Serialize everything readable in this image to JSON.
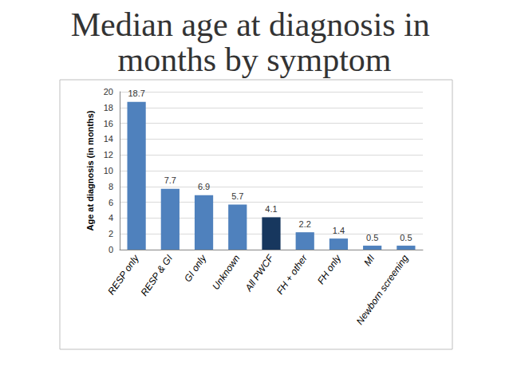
{
  "chart_data": {
    "type": "bar",
    "title": "Median age at diagnosis in months by symptom",
    "y_label": "Age at diagnosis (in months)",
    "categories": [
      "RESP only",
      "RESP & GI",
      "GI only",
      "Unknown",
      "All PWCF",
      "FH + other",
      "FH only",
      "MI",
      "Newborn screening"
    ],
    "values": [
      18.7,
      7.7,
      6.9,
      5.7,
      4.1,
      2.2,
      1.4,
      0.5,
      0.5
    ],
    "colors": [
      "#4f81bd",
      "#4f81bd",
      "#4f81bd",
      "#4f81bd",
      "#17375e",
      "#4f81bd",
      "#4f81bd",
      "#4f81bd",
      "#4f81bd"
    ],
    "ylim": [
      0,
      20
    ],
    "yticks": [
      0,
      2,
      4,
      6,
      8,
      10,
      12,
      14,
      16,
      18,
      20
    ],
    "grid": true,
    "data_labels": true
  }
}
